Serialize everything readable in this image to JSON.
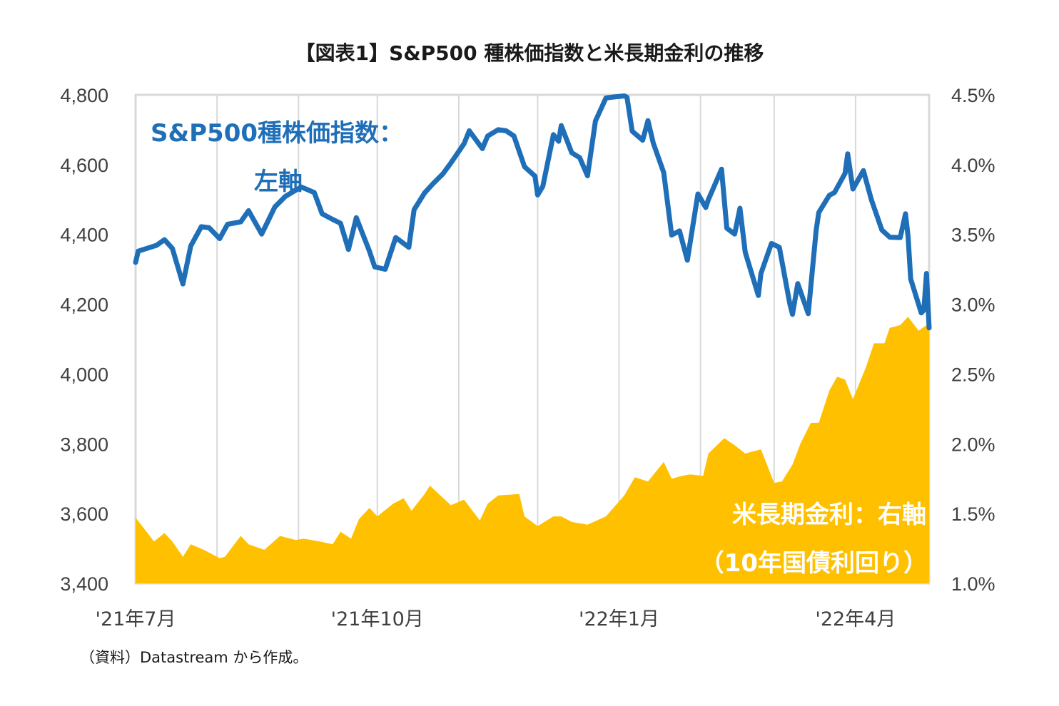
{
  "chart_data": {
    "type": "line",
    "title": "【図表1】S&P500 種株価指数と米長期金利の推移",
    "source": "（資料）Datastream から作成。",
    "x_tick_labels": [
      "'21年7月",
      "'21年10月",
      "'22年1月",
      "'22年4月"
    ],
    "month_divider_dates": [
      "2021-08-01",
      "2021-09-01",
      "2021-10-01",
      "2021-11-01",
      "2021-12-01",
      "2022-01-01",
      "2022-02-01",
      "2022-03-01",
      "2022-04-01"
    ],
    "x_range": [
      "2021-07-01",
      "2022-04-29"
    ],
    "left_axis": {
      "range": [
        3400,
        4800
      ],
      "ticks": [
        "3,400",
        "3,600",
        "3,800",
        "4,000",
        "4,200",
        "4,400",
        "4,600",
        "4,800"
      ]
    },
    "right_axis": {
      "range": [
        1.0,
        4.5
      ],
      "ticks": [
        "1.0%",
        "1.5%",
        "2.0%",
        "2.5%",
        "3.0%",
        "3.5%",
        "4.0%",
        "4.5%"
      ]
    },
    "series": [
      {
        "name_lines": [
          "S&P500種株価指数：",
          "左軸"
        ],
        "axis": "left",
        "render": "line",
        "color": "#1f6fb8",
        "points": [
          [
            "2021-07-01",
            4320
          ],
          [
            "2021-07-02",
            4352
          ],
          [
            "2021-07-09",
            4369
          ],
          [
            "2021-07-12",
            4385
          ],
          [
            "2021-07-15",
            4360
          ],
          [
            "2021-07-19",
            4258
          ],
          [
            "2021-07-22",
            4367
          ],
          [
            "2021-07-26",
            4422
          ],
          [
            "2021-07-29",
            4419
          ],
          [
            "2021-08-02",
            4388
          ],
          [
            "2021-08-05",
            4429
          ],
          [
            "2021-08-10",
            4436
          ],
          [
            "2021-08-13",
            4468
          ],
          [
            "2021-08-18",
            4401
          ],
          [
            "2021-08-23",
            4479
          ],
          [
            "2021-08-27",
            4509
          ],
          [
            "2021-09-02",
            4536
          ],
          [
            "2021-09-07",
            4520
          ],
          [
            "2021-09-10",
            4459
          ],
          [
            "2021-09-14",
            4443
          ],
          [
            "2021-09-17",
            4432
          ],
          [
            "2021-09-20",
            4357
          ],
          [
            "2021-09-23",
            4448
          ],
          [
            "2021-09-28",
            4352
          ],
          [
            "2021-09-30",
            4307
          ],
          [
            "2021-10-04",
            4300
          ],
          [
            "2021-10-08",
            4391
          ],
          [
            "2021-10-13",
            4363
          ],
          [
            "2021-10-15",
            4471
          ],
          [
            "2021-10-19",
            4519
          ],
          [
            "2021-10-22",
            4544
          ],
          [
            "2021-10-26",
            4574
          ],
          [
            "2021-10-29",
            4605
          ],
          [
            "2021-11-03",
            4660
          ],
          [
            "2021-11-05",
            4697
          ],
          [
            "2021-11-10",
            4646
          ],
          [
            "2021-11-12",
            4682
          ],
          [
            "2021-11-16",
            4700
          ],
          [
            "2021-11-19",
            4697
          ],
          [
            "2021-11-22",
            4682
          ],
          [
            "2021-11-26",
            4594
          ],
          [
            "2021-11-30",
            4567
          ],
          [
            "2021-12-01",
            4513
          ],
          [
            "2021-12-03",
            4538
          ],
          [
            "2021-12-07",
            4686
          ],
          [
            "2021-12-09",
            4667
          ],
          [
            "2021-12-10",
            4712
          ],
          [
            "2021-12-14",
            4634
          ],
          [
            "2021-12-17",
            4620
          ],
          [
            "2021-12-20",
            4568
          ],
          [
            "2021-12-23",
            4725
          ],
          [
            "2021-12-27",
            4791
          ],
          [
            "2021-12-29",
            4793
          ],
          [
            "2022-01-03",
            4797
          ],
          [
            "2022-01-04",
            4793
          ],
          [
            "2022-01-06",
            4696
          ],
          [
            "2022-01-10",
            4670
          ],
          [
            "2022-01-12",
            4726
          ],
          [
            "2022-01-14",
            4662
          ],
          [
            "2022-01-18",
            4577
          ],
          [
            "2022-01-21",
            4398
          ],
          [
            "2022-01-24",
            4410
          ],
          [
            "2022-01-27",
            4326
          ],
          [
            "2022-01-31",
            4516
          ],
          [
            "2022-02-03",
            4477
          ],
          [
            "2022-02-04",
            4500
          ],
          [
            "2022-02-09",
            4587
          ],
          [
            "2022-02-11",
            4418
          ],
          [
            "2022-02-14",
            4401
          ],
          [
            "2022-02-16",
            4475
          ],
          [
            "2022-02-18",
            4349
          ],
          [
            "2022-02-23",
            4225
          ],
          [
            "2022-02-24",
            4288
          ],
          [
            "2022-02-28",
            4374
          ],
          [
            "2022-03-03",
            4363
          ],
          [
            "2022-03-07",
            4201
          ],
          [
            "2022-03-08",
            4171
          ],
          [
            "2022-03-10",
            4259
          ],
          [
            "2022-03-14",
            4173
          ],
          [
            "2022-03-17",
            4412
          ],
          [
            "2022-03-18",
            4463
          ],
          [
            "2022-03-22",
            4512
          ],
          [
            "2022-03-24",
            4520
          ],
          [
            "2022-03-28",
            4575
          ],
          [
            "2022-03-29",
            4631
          ],
          [
            "2022-03-31",
            4530
          ],
          [
            "2022-04-04",
            4583
          ],
          [
            "2022-04-07",
            4500
          ],
          [
            "2022-04-11",
            4413
          ],
          [
            "2022-04-14",
            4392
          ],
          [
            "2022-04-18",
            4391
          ],
          [
            "2022-04-20",
            4459
          ],
          [
            "2022-04-21",
            4394
          ],
          [
            "2022-04-22",
            4272
          ],
          [
            "2022-04-26",
            4175
          ],
          [
            "2022-04-27",
            4183
          ],
          [
            "2022-04-28",
            4288
          ],
          [
            "2022-04-29",
            4132
          ]
        ]
      },
      {
        "name_lines": [
          "米長期金利：右軸",
          "（10年国債利回り）"
        ],
        "axis": "right",
        "render": "area",
        "color": "#ffc000",
        "points": [
          [
            "2021-07-01",
            1.47
          ],
          [
            "2021-07-06",
            1.35
          ],
          [
            "2021-07-08",
            1.3
          ],
          [
            "2021-07-12",
            1.36
          ],
          [
            "2021-07-15",
            1.3
          ],
          [
            "2021-07-19",
            1.19
          ],
          [
            "2021-07-22",
            1.28
          ],
          [
            "2021-07-27",
            1.24
          ],
          [
            "2021-08-02",
            1.18
          ],
          [
            "2021-08-04",
            1.19
          ],
          [
            "2021-08-10",
            1.34
          ],
          [
            "2021-08-13",
            1.28
          ],
          [
            "2021-08-19",
            1.24
          ],
          [
            "2021-08-25",
            1.34
          ],
          [
            "2021-08-31",
            1.31
          ],
          [
            "2021-09-03",
            1.32
          ],
          [
            "2021-09-09",
            1.3
          ],
          [
            "2021-09-14",
            1.28
          ],
          [
            "2021-09-17",
            1.37
          ],
          [
            "2021-09-21",
            1.32
          ],
          [
            "2021-09-24",
            1.46
          ],
          [
            "2021-09-28",
            1.54
          ],
          [
            "2021-10-01",
            1.48
          ],
          [
            "2021-10-07",
            1.57
          ],
          [
            "2021-10-11",
            1.61
          ],
          [
            "2021-10-14",
            1.52
          ],
          [
            "2021-10-19",
            1.64
          ],
          [
            "2021-10-21",
            1.7
          ],
          [
            "2021-10-25",
            1.63
          ],
          [
            "2021-10-29",
            1.56
          ],
          [
            "2021-11-03",
            1.6
          ],
          [
            "2021-11-09",
            1.45
          ],
          [
            "2021-11-12",
            1.57
          ],
          [
            "2021-11-16",
            1.63
          ],
          [
            "2021-11-24",
            1.64
          ],
          [
            "2021-11-26",
            1.48
          ],
          [
            "2021-12-01",
            1.41
          ],
          [
            "2021-12-07",
            1.48
          ],
          [
            "2021-12-10",
            1.48
          ],
          [
            "2021-12-14",
            1.44
          ],
          [
            "2021-12-20",
            1.42
          ],
          [
            "2021-12-27",
            1.48
          ],
          [
            "2022-01-03",
            1.63
          ],
          [
            "2022-01-07",
            1.76
          ],
          [
            "2022-01-12",
            1.73
          ],
          [
            "2022-01-18",
            1.87
          ],
          [
            "2022-01-21",
            1.75
          ],
          [
            "2022-01-25",
            1.77
          ],
          [
            "2022-01-28",
            1.78
          ],
          [
            "2022-02-02",
            1.77
          ],
          [
            "2022-02-04",
            1.93
          ],
          [
            "2022-02-10",
            2.04
          ],
          [
            "2022-02-14",
            1.99
          ],
          [
            "2022-02-18",
            1.93
          ],
          [
            "2022-02-24",
            1.96
          ],
          [
            "2022-03-01",
            1.72
          ],
          [
            "2022-03-04",
            1.73
          ],
          [
            "2022-03-08",
            1.85
          ],
          [
            "2022-03-11",
            2.0
          ],
          [
            "2022-03-15",
            2.15
          ],
          [
            "2022-03-18",
            2.15
          ],
          [
            "2022-03-22",
            2.38
          ],
          [
            "2022-03-25",
            2.48
          ],
          [
            "2022-03-28",
            2.46
          ],
          [
            "2022-03-31",
            2.32
          ],
          [
            "2022-04-05",
            2.55
          ],
          [
            "2022-04-08",
            2.72
          ],
          [
            "2022-04-12",
            2.72
          ],
          [
            "2022-04-14",
            2.83
          ],
          [
            "2022-04-18",
            2.85
          ],
          [
            "2022-04-21",
            2.91
          ],
          [
            "2022-04-25",
            2.81
          ],
          [
            "2022-04-28",
            2.85
          ],
          [
            "2022-04-29",
            2.89
          ]
        ]
      }
    ]
  }
}
